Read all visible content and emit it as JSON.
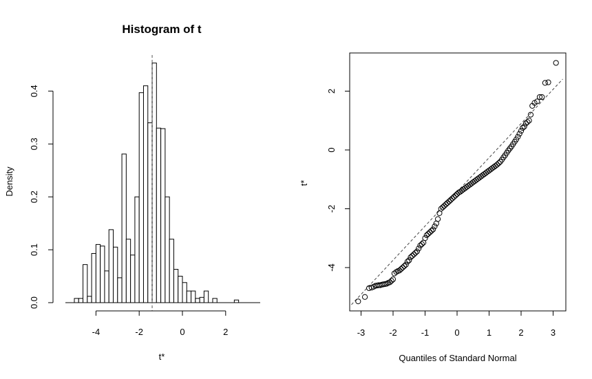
{
  "chart_data": [
    {
      "type": "bar",
      "title": "Histogram of t",
      "xlabel": "t*",
      "ylabel": "Density",
      "xlim": [
        -5.5,
        3.4
      ],
      "ylim": [
        0,
        0.47
      ],
      "bin_width": 0.2,
      "bin_start": -5.0,
      "values": [
        0.008,
        0.008,
        0.072,
        0.012,
        0.093,
        0.11,
        0.107,
        0.06,
        0.138,
        0.105,
        0.047,
        0.281,
        0.12,
        0.09,
        0.2,
        0.397,
        0.41,
        0.34,
        0.453,
        0.33,
        0.329,
        0.2,
        0.12,
        0.063,
        0.05,
        0.038,
        0.022,
        0.022,
        0.008,
        0.01,
        0.022,
        0.0,
        0.008,
        0.0,
        0.0,
        0.0,
        0.0,
        0.005,
        0.0,
        0.0
      ],
      "x_ticks": [
        -4,
        -2,
        0,
        2
      ],
      "x_tick_labels": [
        "-4",
        "-2",
        "0",
        "2"
      ],
      "y_ticks": [
        0.0,
        0.1,
        0.2,
        0.3,
        0.4
      ],
      "y_tick_labels": [
        "0.0",
        "0.1",
        "0.2",
        "0.3",
        "0.4"
      ],
      "reference_line_x": -1.4,
      "grid": false
    },
    {
      "type": "scatter",
      "title": "",
      "xlabel": "Quantiles of Standard Normal",
      "ylabel": "t*",
      "xlim": [
        -3.3,
        3.3
      ],
      "ylim": [
        -5.5,
        3.2
      ],
      "x_ticks": [
        -3,
        -2,
        -1,
        0,
        1,
        2,
        3
      ],
      "x_tick_labels": [
        "-3",
        "-2",
        "-1",
        "0",
        "1",
        "2",
        "3"
      ],
      "y_ticks": [
        -4,
        -2,
        0,
        2
      ],
      "y_tick_labels": [
        "-4",
        "-2",
        "0",
        "2"
      ],
      "reference_line": {
        "slope": 1.2,
        "intercept": -1.3
      },
      "points": [
        [
          -3.09,
          -5.15
        ],
        [
          -2.88,
          -5.0
        ],
        [
          -2.75,
          -4.7
        ],
        [
          -2.67,
          -4.68
        ],
        [
          -2.6,
          -4.65
        ],
        [
          -2.55,
          -4.62
        ],
        [
          -2.5,
          -4.61
        ],
        [
          -2.45,
          -4.6
        ],
        [
          -2.4,
          -4.6
        ],
        [
          -2.35,
          -4.58
        ],
        [
          -2.3,
          -4.57
        ],
        [
          -2.25,
          -4.56
        ],
        [
          -2.2,
          -4.55
        ],
        [
          -2.15,
          -4.52
        ],
        [
          -2.1,
          -4.5
        ],
        [
          -2.05,
          -4.45
        ],
        [
          -2.0,
          -4.4
        ],
        [
          -1.96,
          -4.2
        ],
        [
          -1.9,
          -4.15
        ],
        [
          -1.85,
          -4.12
        ],
        [
          -1.8,
          -4.1
        ],
        [
          -1.75,
          -4.05
        ],
        [
          -1.7,
          -4.0
        ],
        [
          -1.65,
          -3.95
        ],
        [
          -1.6,
          -3.9
        ],
        [
          -1.55,
          -3.8
        ],
        [
          -1.5,
          -3.75
        ],
        [
          -1.45,
          -3.65
        ],
        [
          -1.4,
          -3.6
        ],
        [
          -1.35,
          -3.55
        ],
        [
          -1.3,
          -3.5
        ],
        [
          -1.25,
          -3.45
        ],
        [
          -1.2,
          -3.35
        ],
        [
          -1.15,
          -3.25
        ],
        [
          -1.1,
          -3.2
        ],
        [
          -1.05,
          -3.15
        ],
        [
          -1.0,
          -3.0
        ],
        [
          -0.95,
          -2.9
        ],
        [
          -0.9,
          -2.85
        ],
        [
          -0.85,
          -2.8
        ],
        [
          -0.8,
          -2.75
        ],
        [
          -0.75,
          -2.7
        ],
        [
          -0.7,
          -2.6
        ],
        [
          -0.65,
          -2.5
        ],
        [
          -0.6,
          -2.35
        ],
        [
          -0.55,
          -2.15
        ],
        [
          -0.5,
          -2.0
        ],
        [
          -0.45,
          -1.95
        ],
        [
          -0.4,
          -1.9
        ],
        [
          -0.35,
          -1.85
        ],
        [
          -0.3,
          -1.8
        ],
        [
          -0.25,
          -1.75
        ],
        [
          -0.2,
          -1.7
        ],
        [
          -0.15,
          -1.65
        ],
        [
          -0.1,
          -1.6
        ],
        [
          -0.05,
          -1.55
        ],
        [
          0.0,
          -1.5
        ],
        [
          0.05,
          -1.45
        ],
        [
          0.1,
          -1.42
        ],
        [
          0.15,
          -1.38
        ],
        [
          0.2,
          -1.34
        ],
        [
          0.25,
          -1.3
        ],
        [
          0.3,
          -1.26
        ],
        [
          0.35,
          -1.22
        ],
        [
          0.4,
          -1.18
        ],
        [
          0.45,
          -1.14
        ],
        [
          0.5,
          -1.1
        ],
        [
          0.55,
          -1.06
        ],
        [
          0.6,
          -1.02
        ],
        [
          0.65,
          -0.98
        ],
        [
          0.7,
          -0.94
        ],
        [
          0.75,
          -0.9
        ],
        [
          0.8,
          -0.86
        ],
        [
          0.85,
          -0.82
        ],
        [
          0.9,
          -0.78
        ],
        [
          0.95,
          -0.74
        ],
        [
          1.0,
          -0.7
        ],
        [
          1.05,
          -0.66
        ],
        [
          1.1,
          -0.62
        ],
        [
          1.15,
          -0.58
        ],
        [
          1.2,
          -0.54
        ],
        [
          1.25,
          -0.5
        ],
        [
          1.3,
          -0.45
        ],
        [
          1.35,
          -0.4
        ],
        [
          1.4,
          -0.33
        ],
        [
          1.45,
          -0.25
        ],
        [
          1.5,
          -0.18
        ],
        [
          1.55,
          -0.1
        ],
        [
          1.6,
          -0.02
        ],
        [
          1.65,
          0.05
        ],
        [
          1.7,
          0.12
        ],
        [
          1.75,
          0.2
        ],
        [
          1.8,
          0.28
        ],
        [
          1.85,
          0.36
        ],
        [
          1.9,
          0.45
        ],
        [
          1.95,
          0.55
        ],
        [
          2.0,
          0.65
        ],
        [
          2.05,
          0.75
        ],
        [
          2.1,
          0.8
        ],
        [
          2.15,
          0.9
        ],
        [
          2.2,
          0.95
        ],
        [
          2.25,
          1.0
        ],
        [
          2.3,
          1.2
        ],
        [
          2.35,
          1.5
        ],
        [
          2.42,
          1.6
        ],
        [
          2.5,
          1.65
        ],
        [
          2.58,
          1.8
        ],
        [
          2.65,
          1.8
        ],
        [
          2.75,
          2.28
        ],
        [
          2.85,
          2.3
        ],
        [
          3.09,
          2.96
        ]
      ],
      "grid": false
    }
  ]
}
